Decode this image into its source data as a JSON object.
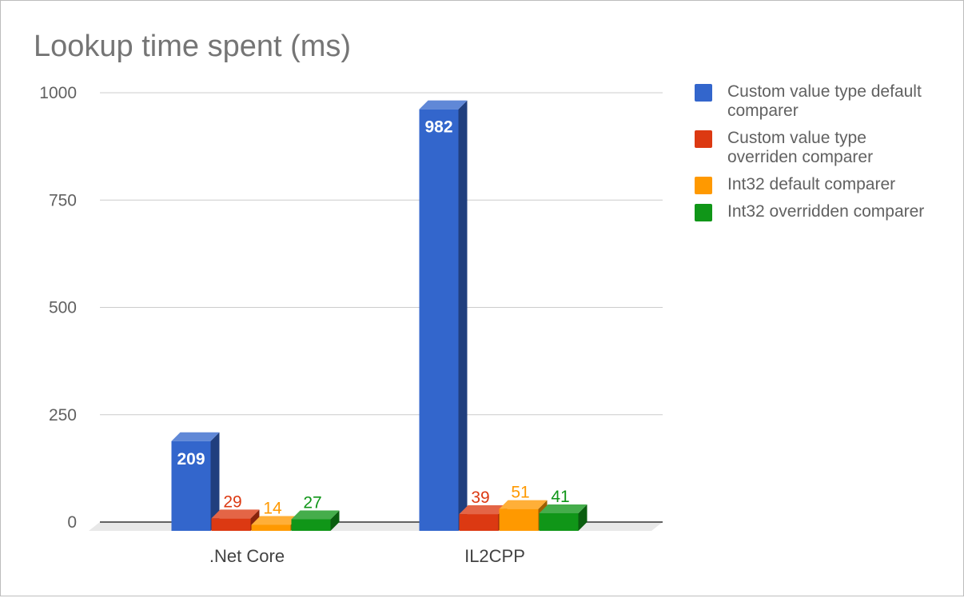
{
  "chart_data": {
    "type": "bar",
    "title": "Lookup time spent (ms)",
    "xlabel": "",
    "ylabel": "",
    "ylim": [
      0,
      1000
    ],
    "yticks": [
      0,
      250,
      500,
      750,
      1000
    ],
    "categories": [
      ".Net Core",
      "IL2CPP"
    ],
    "series": [
      {
        "name": "Custom value type default comparer",
        "values": [
          209,
          982
        ],
        "color": "#3366cc",
        "label_inside": true
      },
      {
        "name": "Custom value type overriden comparer",
        "values": [
          29,
          39
        ],
        "color": "#dc3912",
        "label_inside": false
      },
      {
        "name": "Int32 default comparer",
        "values": [
          14,
          51
        ],
        "color": "#ff9900",
        "label_inside": false
      },
      {
        "name": "Int32 overridden comparer",
        "values": [
          27,
          41
        ],
        "color": "#109618",
        "label_inside": false
      }
    ],
    "grid": true,
    "legend_position": "right",
    "style": "3d"
  }
}
